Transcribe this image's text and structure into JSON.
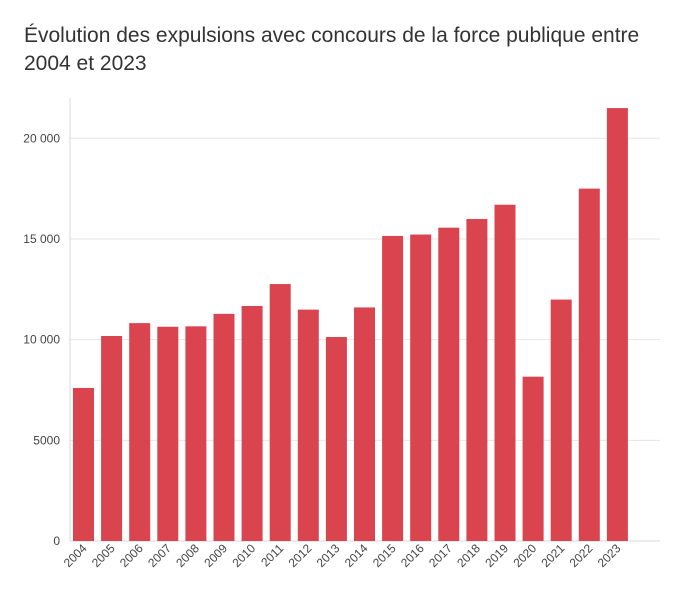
{
  "chart_data": {
    "type": "bar",
    "title": "Évolution des expulsions avec concours de la force publique entre 2004 et 2023",
    "xlabel": "",
    "ylabel": "",
    "categories": [
      "2004",
      "2005",
      "2006",
      "2007",
      "2008",
      "2009",
      "2010",
      "2011",
      "2012",
      "2013",
      "2014",
      "2015",
      "2016",
      "2017",
      "2018",
      "2019",
      "2020",
      "2021",
      "2022",
      "2023"
    ],
    "values": [
      7600,
      10180,
      10820,
      10640,
      10660,
      11280,
      11670,
      12760,
      11490,
      10130,
      11600,
      15150,
      15220,
      15560,
      15990,
      16700,
      8160,
      11990,
      17500,
      21500
    ],
    "ylim": [
      0,
      22000
    ],
    "yticks": [
      0,
      5000,
      10000,
      15000,
      20000
    ],
    "ytick_labels": [
      "0",
      "5000",
      "10 000",
      "15 000",
      "20 000"
    ],
    "grid": true,
    "bar_color": "#d9444e",
    "legend": "none"
  }
}
